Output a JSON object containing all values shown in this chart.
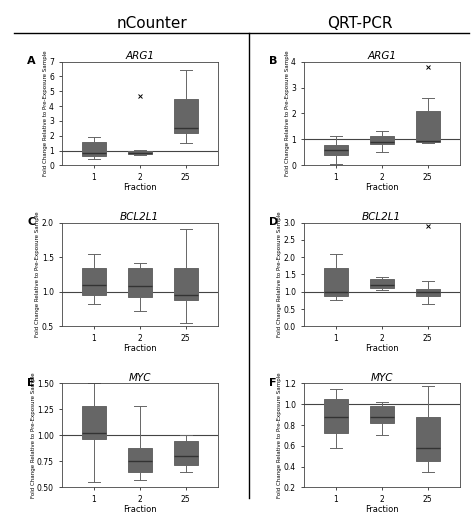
{
  "col_titles": [
    "nCounter",
    "QRT-PCR"
  ],
  "gene_titles": [
    "ARG1",
    "BCL2L1",
    "MYC"
  ],
  "xlabel": "Fraction",
  "ylabel": "Fold Change Relative to Pre-Exposure Sample",
  "xtick_labels": [
    "1",
    "2",
    "25"
  ],
  "hline_y": 1.0,
  "box_color": "#a8c8e8",
  "box_edgecolor": "#666666",
  "median_color": "#333333",
  "panels": {
    "A": {
      "gene": "ARG1",
      "ylim": [
        0,
        7
      ],
      "yticks": [
        0,
        1,
        2,
        3,
        4,
        5,
        6,
        7
      ],
      "boxes": [
        {
          "whislo": 0.45,
          "q1": 0.62,
          "med": 0.82,
          "q3": 1.55,
          "whishi": 1.9,
          "fliers": []
        },
        {
          "whislo": 0.72,
          "q1": 0.78,
          "med": 0.85,
          "q3": 0.98,
          "whishi": 1.05,
          "fliers": [
            4.7
          ]
        },
        {
          "whislo": 1.5,
          "q1": 2.2,
          "med": 2.5,
          "q3": 4.5,
          "whishi": 6.4,
          "fliers": []
        }
      ]
    },
    "B": {
      "gene": "ARG1",
      "ylim": [
        0,
        4
      ],
      "yticks": [
        0,
        1,
        2,
        3,
        4
      ],
      "boxes": [
        {
          "whislo": 0.05,
          "q1": 0.42,
          "med": 0.58,
          "q3": 0.78,
          "whishi": 1.12,
          "fliers": []
        },
        {
          "whislo": 0.52,
          "q1": 0.82,
          "med": 0.9,
          "q3": 1.15,
          "whishi": 1.32,
          "fliers": []
        },
        {
          "whislo": 0.85,
          "q1": 0.9,
          "med": 0.95,
          "q3": 2.1,
          "whishi": 2.6,
          "fliers": [
            3.8
          ]
        }
      ]
    },
    "C": {
      "gene": "BCL2L1",
      "ylim": [
        0.5,
        2.0
      ],
      "yticks": [
        0.5,
        1.0,
        1.5,
        2.0
      ],
      "boxes": [
        {
          "whislo": 0.82,
          "q1": 0.95,
          "med": 1.1,
          "q3": 1.35,
          "whishi": 1.55,
          "fliers": []
        },
        {
          "whislo": 0.72,
          "q1": 0.92,
          "med": 1.08,
          "q3": 1.35,
          "whishi": 1.42,
          "fliers": []
        },
        {
          "whislo": 0.55,
          "q1": 0.88,
          "med": 0.95,
          "q3": 1.35,
          "whishi": 1.9,
          "fliers": []
        }
      ]
    },
    "D": {
      "gene": "BCL2L1",
      "ylim": [
        0.0,
        3.0
      ],
      "yticks": [
        0.0,
        0.5,
        1.0,
        1.5,
        2.0,
        2.5,
        3.0
      ],
      "boxes": [
        {
          "whislo": 0.75,
          "q1": 0.88,
          "med": 1.0,
          "q3": 1.7,
          "whishi": 2.1,
          "fliers": []
        },
        {
          "whislo": 1.05,
          "q1": 1.1,
          "med": 1.2,
          "q3": 1.38,
          "whishi": 1.42,
          "fliers": []
        },
        {
          "whislo": 0.65,
          "q1": 0.88,
          "med": 0.98,
          "q3": 1.08,
          "whishi": 1.3,
          "fliers": [
            2.9
          ]
        }
      ]
    },
    "E": {
      "gene": "MYC",
      "ylim": [
        0.5,
        1.5
      ],
      "yticks": [
        0.5,
        0.75,
        1.0,
        1.25,
        1.5
      ],
      "boxes": [
        {
          "whislo": 0.55,
          "q1": 0.97,
          "med": 1.02,
          "q3": 1.28,
          "whishi": 1.5,
          "fliers": []
        },
        {
          "whislo": 0.57,
          "q1": 0.65,
          "med": 0.75,
          "q3": 0.88,
          "whishi": 1.28,
          "fliers": []
        },
        {
          "whislo": 0.65,
          "q1": 0.72,
          "med": 0.8,
          "q3": 0.95,
          "whishi": 1.0,
          "fliers": []
        }
      ]
    },
    "F": {
      "gene": "MYC",
      "ylim": [
        0.2,
        1.2
      ],
      "yticks": [
        0.2,
        0.4,
        0.6,
        0.8,
        1.0,
        1.2
      ],
      "boxes": [
        {
          "whislo": 0.58,
          "q1": 0.72,
          "med": 0.88,
          "q3": 1.05,
          "whishi": 1.15,
          "fliers": []
        },
        {
          "whislo": 0.7,
          "q1": 0.82,
          "med": 0.88,
          "q3": 0.98,
          "whishi": 1.02,
          "fliers": []
        },
        {
          "whislo": 0.35,
          "q1": 0.45,
          "med": 0.58,
          "q3": 0.88,
          "whishi": 1.18,
          "fliers": []
        }
      ]
    }
  },
  "panel_order": [
    "A",
    "B",
    "C",
    "D",
    "E",
    "F"
  ],
  "panel_rows": [
    [
      0,
      0
    ],
    [
      0,
      1
    ],
    [
      1,
      0
    ],
    [
      1,
      1
    ],
    [
      2,
      0
    ],
    [
      2,
      1
    ]
  ]
}
